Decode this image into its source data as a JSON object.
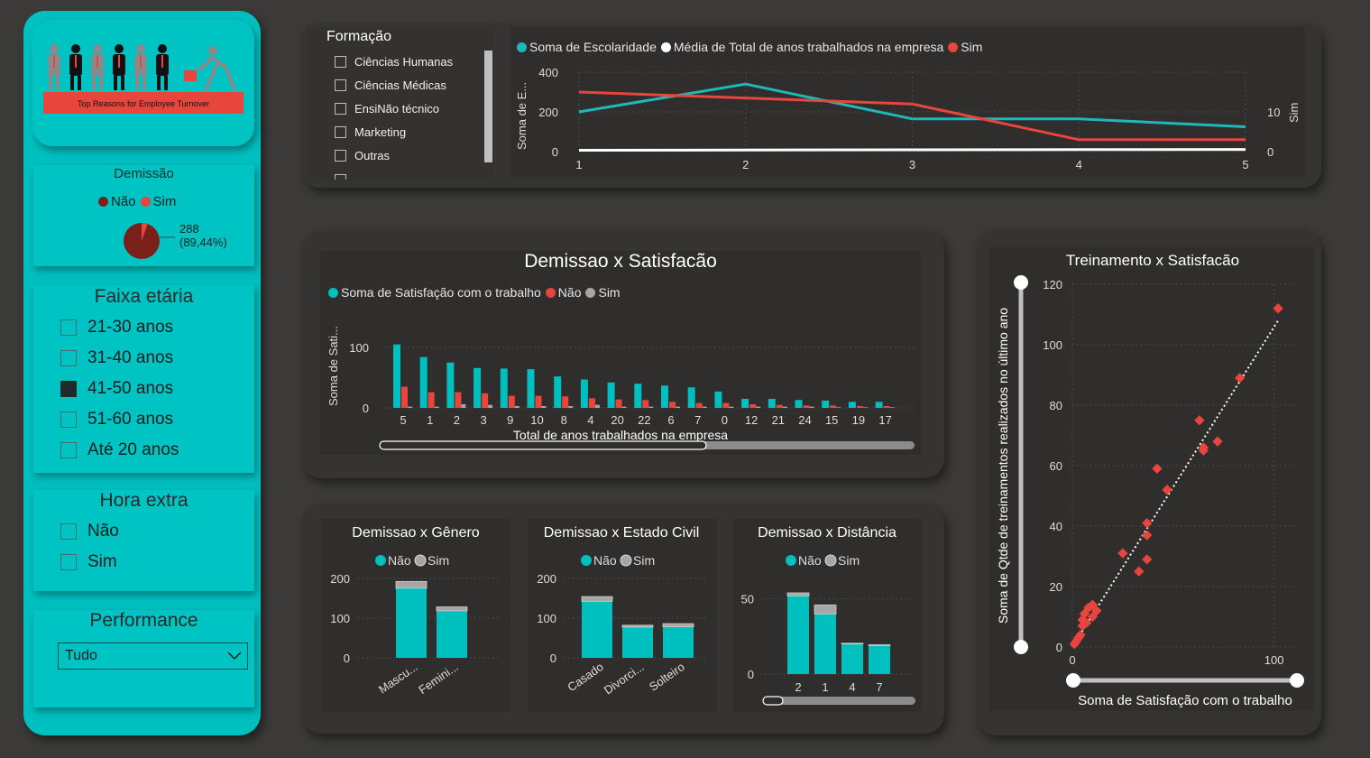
{
  "logo": {
    "banner_text": "Top Reasons for Employee Turnover"
  },
  "demissao_tile": {
    "title": "Demissão",
    "legend": [
      {
        "label": "Não",
        "color": "#7a1f1a"
      },
      {
        "label": "Sim",
        "color": "#e8453c"
      }
    ],
    "label_line1": "288",
    "label_line2": "(89,44%)"
  },
  "faixa_etaria": {
    "title": "Faixa etária",
    "items": [
      {
        "label": "21-30 anos",
        "checked": false
      },
      {
        "label": "31-40 anos",
        "checked": false
      },
      {
        "label": "41-50 anos",
        "checked": true
      },
      {
        "label": "51-60 anos",
        "checked": false
      },
      {
        "label": "Até 20 anos",
        "checked": false
      }
    ]
  },
  "hora_extra": {
    "title": "Hora extra",
    "items": [
      {
        "label": "Não",
        "checked": false
      },
      {
        "label": "Sim",
        "checked": false
      }
    ]
  },
  "performance": {
    "title": "Performance",
    "selected": "Tudo"
  },
  "formacao": {
    "title": "Formação",
    "items": [
      "Ciências Humanas",
      "Ciências Médicas",
      "EnsiNão técnico",
      "Marketing",
      "Outras"
    ]
  },
  "chart_data": [
    {
      "type": "line",
      "x": [
        1,
        2,
        3,
        4,
        5
      ],
      "series": [
        {
          "name": "Soma de Escolaridade",
          "color": "#1fb8b8",
          "values": [
            200,
            340,
            165,
            165,
            125
          ],
          "axis": "left"
        },
        {
          "name": "Média de Total de anos trabalhados na empresa",
          "color": "#ffffff",
          "values": [
            7,
            8,
            9,
            10,
            11
          ],
          "axis": "left"
        },
        {
          "name": "Sim",
          "color": "#e8453c",
          "values": [
            15,
            13.5,
            12,
            3,
            3
          ],
          "axis": "right"
        }
      ],
      "ylabel": "Soma de E...",
      "y2label": "Sim",
      "ylim": [
        0,
        400
      ],
      "yticks": [
        0,
        200,
        400
      ],
      "y2lim": [
        0,
        20
      ],
      "y2ticks": [
        0,
        10
      ]
    },
    {
      "type": "bar",
      "title": "Demissao x Satisfacão",
      "categories": [
        "5",
        "1",
        "2",
        "3",
        "9",
        "10",
        "8",
        "4",
        "20",
        "22",
        "6",
        "7",
        "0",
        "12",
        "21",
        "24",
        "15",
        "19",
        "17"
      ],
      "series": [
        {
          "name": "Soma de Satisfação com o trabalho",
          "color": "#00bfbf",
          "values": [
            105,
            84,
            75,
            66,
            65,
            64,
            52,
            47,
            42,
            40,
            37,
            34,
            27,
            15,
            15,
            13,
            12,
            10,
            10
          ]
        },
        {
          "name": "Não",
          "color": "#e8453c",
          "values": [
            35,
            26,
            26,
            24,
            20,
            20,
            19,
            16,
            14,
            13,
            10,
            8,
            8,
            6,
            5,
            4,
            4,
            3,
            3
          ]
        },
        {
          "name": "Sim",
          "color": "#a6a6a6",
          "values": [
            2,
            2,
            6,
            5,
            3,
            3,
            3,
            5,
            2,
            2,
            2,
            2,
            2,
            2,
            2,
            2,
            1,
            1,
            1
          ]
        }
      ],
      "xlabel": "Total de anos trabalhados na empresa",
      "ylabel": "Soma de Sati...",
      "ylim": [
        0,
        120
      ],
      "yticks": [
        0,
        100
      ]
    },
    {
      "type": "bar",
      "stacked": true,
      "title": "Demissao x Gênero",
      "categories": [
        "Mascu...",
        "Femini..."
      ],
      "series": [
        {
          "name": "Não",
          "color": "#00bfbf",
          "values": [
            175,
            118
          ]
        },
        {
          "name": "Sim",
          "color": "#a6a6a6",
          "values": [
            17,
            10
          ]
        }
      ],
      "ylim": [
        0,
        220
      ],
      "yticks": [
        0,
        100,
        200
      ]
    },
    {
      "type": "bar",
      "stacked": true,
      "title": "Demissao x Estado Civil",
      "categories": [
        "Casado",
        "Divorci...",
        "Solteiro"
      ],
      "series": [
        {
          "name": "Não",
          "color": "#00bfbf",
          "values": [
            142,
            77,
            78
          ]
        },
        {
          "name": "Sim",
          "color": "#a6a6a6",
          "values": [
            12,
            5,
            8
          ]
        }
      ],
      "ylim": [
        0,
        220
      ],
      "yticks": [
        0,
        100,
        200
      ]
    },
    {
      "type": "bar",
      "stacked": true,
      "title": "Demissao x Distância",
      "categories": [
        "2",
        "1",
        "4",
        "7"
      ],
      "series": [
        {
          "name": "Não",
          "color": "#00bfbf",
          "values": [
            52,
            40,
            20,
            19
          ]
        },
        {
          "name": "Sim",
          "color": "#a6a6a6",
          "values": [
            2,
            6,
            0.5,
            0.5
          ]
        }
      ],
      "ylim": [
        0,
        60
      ],
      "yticks": [
        0,
        50
      ]
    },
    {
      "type": "scatter",
      "title": "Treinamento x Satisfacão",
      "points": [
        [
          102,
          112
        ],
        [
          83,
          89
        ],
        [
          72,
          68
        ],
        [
          63,
          75
        ],
        [
          65,
          66
        ],
        [
          65,
          65
        ],
        [
          47,
          52
        ],
        [
          42,
          59
        ],
        [
          37,
          41
        ],
        [
          37,
          37
        ],
        [
          37,
          29
        ],
        [
          33,
          25
        ],
        [
          25,
          31
        ],
        [
          12,
          12
        ],
        [
          10,
          14
        ],
        [
          10,
          10
        ],
        [
          8,
          13
        ],
        [
          7,
          8
        ],
        [
          5,
          9
        ],
        [
          5,
          7
        ],
        [
          4,
          4
        ],
        [
          3,
          3
        ],
        [
          2,
          2
        ],
        [
          1,
          1
        ],
        [
          6,
          11
        ]
      ],
      "color": "#e8453c",
      "trendline": [
        [
          0,
          0
        ],
        [
          102,
          108
        ]
      ],
      "xlabel": "Soma de Satisfação com o trabalho",
      "ylabel": "Soma de Qtde de treinamentos realizados no último ano",
      "xlim": [
        0,
        110
      ],
      "ylim": [
        0,
        120
      ],
      "xticks": [
        0,
        100
      ],
      "yticks": [
        0,
        20,
        40,
        60,
        80,
        100,
        120
      ]
    }
  ]
}
